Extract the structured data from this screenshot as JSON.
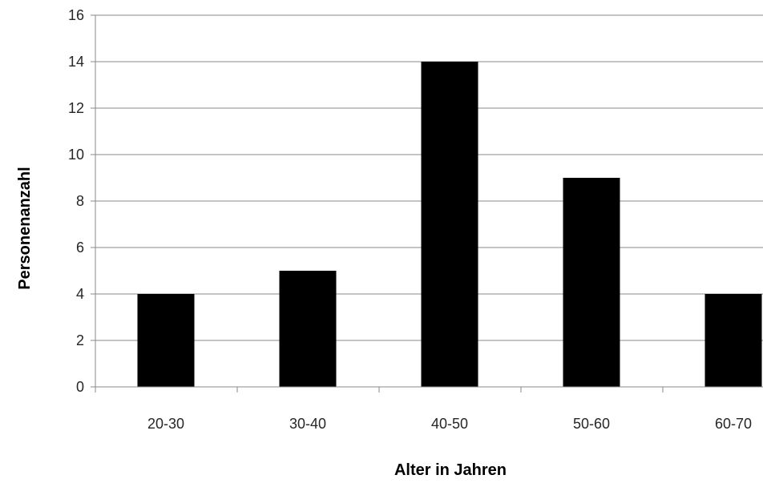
{
  "chart_data": {
    "type": "bar",
    "title": "",
    "xlabel": "Alter in Jahren",
    "ylabel": "Personenanzahl",
    "categories": [
      "20-30",
      "30-40",
      "40-50",
      "50-60",
      "60-70"
    ],
    "values": [
      4,
      5,
      14,
      9,
      4
    ],
    "ylim": [
      0,
      16
    ],
    "yticks": [
      "0",
      "2",
      "4",
      "6",
      "8",
      "10",
      "12",
      "14",
      "16"
    ],
    "grid": true,
    "legend": "none",
    "bar_color": "#000000",
    "grid_color": "#888888"
  }
}
